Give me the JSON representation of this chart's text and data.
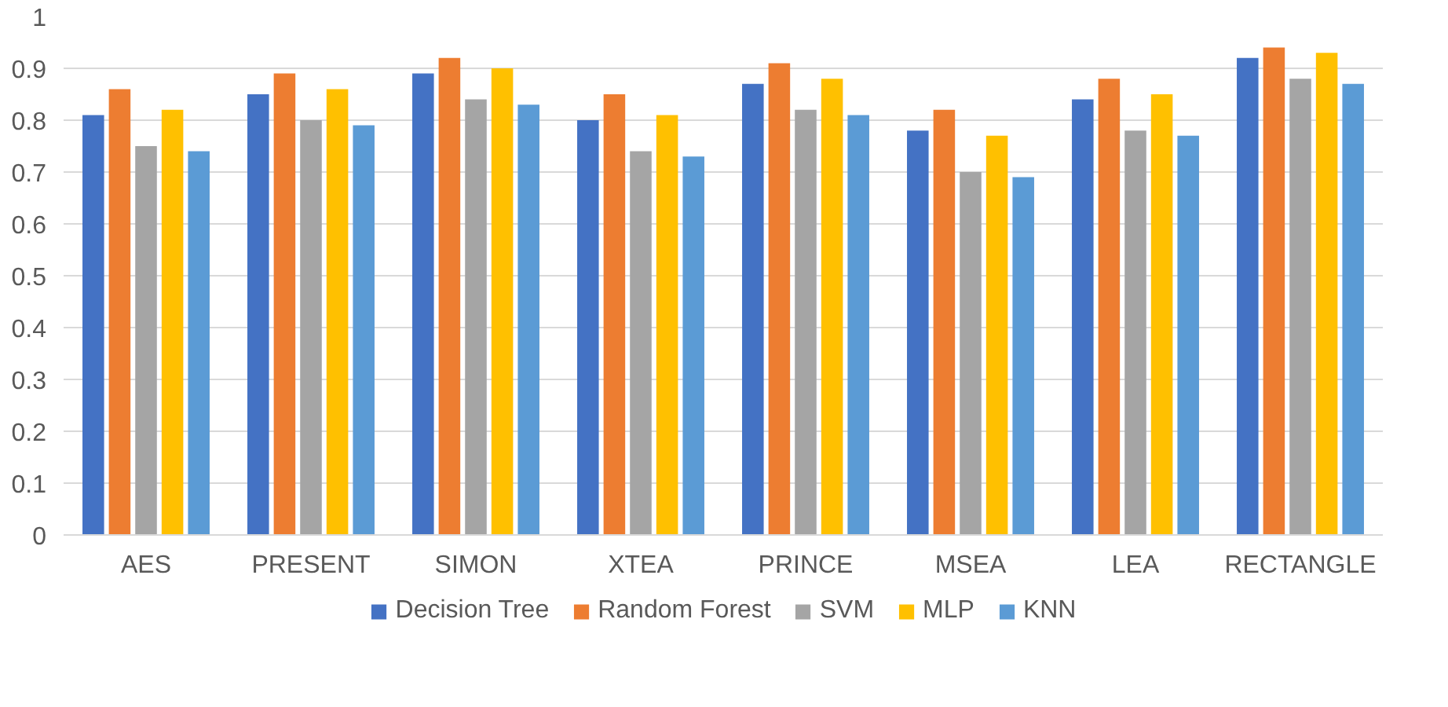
{
  "chart_data": {
    "type": "bar",
    "categories": [
      "AES",
      "PRESENT",
      "SIMON",
      "XTEA",
      "PRINCE",
      "MSEA",
      "LEA",
      "RECTANGLE"
    ],
    "series": [
      {
        "name": "Decision Tree",
        "color": "#4472c4",
        "values": [
          0.81,
          0.85,
          0.89,
          0.8,
          0.87,
          0.78,
          0.84,
          0.92
        ]
      },
      {
        "name": "Random Forest",
        "color": "#ed7d31",
        "values": [
          0.86,
          0.89,
          0.92,
          0.85,
          0.91,
          0.82,
          0.88,
          0.94
        ]
      },
      {
        "name": "SVM",
        "color": "#a5a5a5",
        "values": [
          0.75,
          0.8,
          0.84,
          0.74,
          0.82,
          0.7,
          0.78,
          0.88
        ]
      },
      {
        "name": "MLP",
        "color": "#ffc000",
        "values": [
          0.82,
          0.86,
          0.9,
          0.81,
          0.88,
          0.77,
          0.85,
          0.93
        ]
      },
      {
        "name": "KNN",
        "color": "#5b9bd5",
        "values": [
          0.74,
          0.79,
          0.83,
          0.73,
          0.81,
          0.69,
          0.77,
          0.87
        ]
      }
    ],
    "ylim": [
      0,
      1
    ],
    "yticks": [
      0,
      0.1,
      0.2,
      0.3,
      0.4,
      0.5,
      0.6,
      0.7,
      0.8,
      0.9,
      1
    ],
    "grid": "y",
    "legend": "bottom"
  }
}
